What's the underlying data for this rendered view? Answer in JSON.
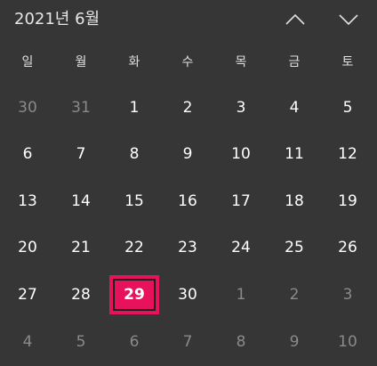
{
  "header": {
    "month_title": "2021년 6월"
  },
  "weekdays": [
    "일",
    "월",
    "화",
    "수",
    "목",
    "금",
    "토"
  ],
  "weeks": [
    [
      {
        "label": "30",
        "other": true
      },
      {
        "label": "31",
        "other": true
      },
      {
        "label": "1",
        "other": false
      },
      {
        "label": "2",
        "other": false
      },
      {
        "label": "3",
        "other": false
      },
      {
        "label": "4",
        "other": false
      },
      {
        "label": "5",
        "other": false
      }
    ],
    [
      {
        "label": "6",
        "other": false
      },
      {
        "label": "7",
        "other": false
      },
      {
        "label": "8",
        "other": false
      },
      {
        "label": "9",
        "other": false
      },
      {
        "label": "10",
        "other": false
      },
      {
        "label": "11",
        "other": false
      },
      {
        "label": "12",
        "other": false
      }
    ],
    [
      {
        "label": "13",
        "other": false
      },
      {
        "label": "14",
        "other": false
      },
      {
        "label": "15",
        "other": false
      },
      {
        "label": "16",
        "other": false
      },
      {
        "label": "17",
        "other": false
      },
      {
        "label": "18",
        "other": false
      },
      {
        "label": "19",
        "other": false
      }
    ],
    [
      {
        "label": "20",
        "other": false
      },
      {
        "label": "21",
        "other": false
      },
      {
        "label": "22",
        "other": false
      },
      {
        "label": "23",
        "other": false
      },
      {
        "label": "24",
        "other": false
      },
      {
        "label": "25",
        "other": false
      },
      {
        "label": "26",
        "other": false
      }
    ],
    [
      {
        "label": "27",
        "other": false
      },
      {
        "label": "28",
        "other": false
      },
      {
        "label": "29",
        "other": false,
        "today": true
      },
      {
        "label": "30",
        "other": false
      },
      {
        "label": "1",
        "other": true
      },
      {
        "label": "2",
        "other": true
      },
      {
        "label": "3",
        "other": true
      }
    ],
    [
      {
        "label": "4",
        "other": true
      },
      {
        "label": "5",
        "other": true
      },
      {
        "label": "6",
        "other": true
      },
      {
        "label": "7",
        "other": true
      },
      {
        "label": "8",
        "other": true
      },
      {
        "label": "9",
        "other": true
      },
      {
        "label": "10",
        "other": true
      }
    ]
  ],
  "icons": {
    "prev": "chevron-up-icon",
    "next": "chevron-down-icon"
  },
  "colors": {
    "background": "#363636",
    "accent": "#e8125c",
    "text": "#ffffff",
    "muted": "#8a8a8a"
  }
}
